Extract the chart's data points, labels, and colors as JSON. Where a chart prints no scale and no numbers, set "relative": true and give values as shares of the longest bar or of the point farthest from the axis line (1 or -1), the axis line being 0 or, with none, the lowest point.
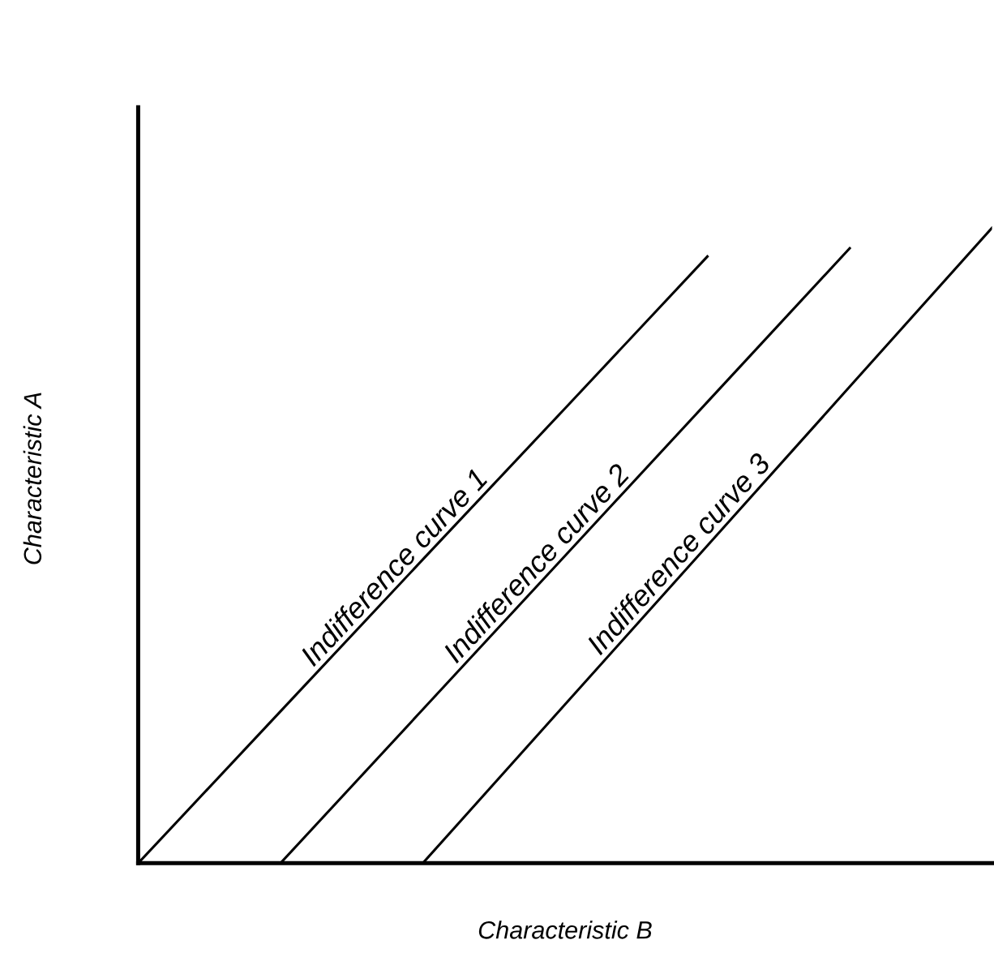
{
  "chart_data": {
    "type": "line",
    "relative": true,
    "xlabel": "Characteristic B",
    "ylabel": "Characteristic A",
    "legend": false,
    "marker": "none",
    "line_style": "solid",
    "categories": [
      null,
      null,
      null,
      null,
      null,
      null,
      null
    ],
    "series": [
      {
        "name": "Indifference curve 1",
        "color": "#000000",
        "values": [
          0,
          0.239,
          0.478,
          0.716,
          0.955,
          null,
          null
        ]
      },
      {
        "name": "Indifference curve 2",
        "color": "#000000",
        "values": [
          null,
          0,
          0.242,
          0.484,
          0.726,
          0.968,
          null
        ]
      },
      {
        "name": "Indifference curve 3",
        "color": "#000000",
        "values": [
          null,
          null,
          0,
          0.25,
          0.5,
          0.75,
          1.0
        ]
      }
    ]
  }
}
